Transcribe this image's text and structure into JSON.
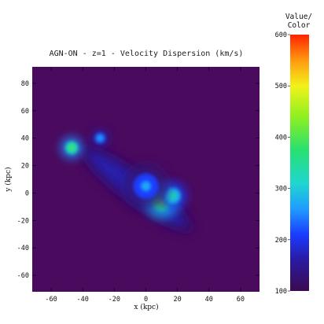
{
  "chart_data": {
    "type": "heatmap",
    "title": "AGN-ON - z=1 - Velocity Dispersion (km/s)",
    "xlabel": "x (kpc)",
    "ylabel": "y (kpc)",
    "xlim": [
      -72,
      72
    ],
    "ylim": [
      -72,
      92
    ],
    "xticks": [
      -60,
      -40,
      -20,
      0,
      20,
      40,
      60
    ],
    "yticks": [
      -60,
      -40,
      -20,
      0,
      20,
      40,
      60,
      80
    ],
    "background_color": "#4a0a5e",
    "colorbar": {
      "title_lines": [
        "Value/",
        "Color"
      ],
      "min": 100,
      "max": 600,
      "ticks": [
        100,
        200,
        300,
        400,
        500,
        600
      ]
    },
    "features": [
      {
        "kind": "filament",
        "from": [
          -42,
          34
        ],
        "to": [
          30,
          -28
        ],
        "width_kpc": 22,
        "value": 170
      },
      {
        "kind": "blob",
        "x": -47,
        "y": 33,
        "r": 4,
        "value": 330
      },
      {
        "kind": "blob",
        "x": -29,
        "y": 40,
        "r": 3.5,
        "value": 230
      },
      {
        "kind": "blob",
        "x": 10,
        "y": -6,
        "r": 6,
        "value": 360
      },
      {
        "kind": "blob",
        "x": 17,
        "y": -2,
        "r": 5,
        "value": 280
      },
      {
        "kind": "blob",
        "x": 0,
        "y": 5,
        "r": 8,
        "value": 210
      }
    ]
  }
}
